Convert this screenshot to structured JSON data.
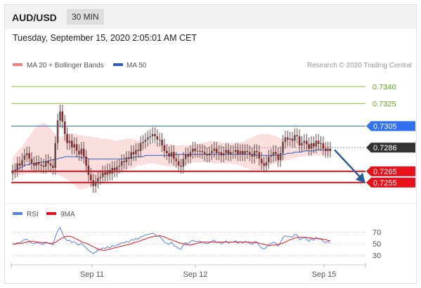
{
  "header": {
    "symbol": "AUD/USD",
    "timeframe": "30 MIN"
  },
  "timestamp": "Tuesday, September 15, 2020 2:05:01 AM CET",
  "legend": {
    "bollinger": "MA 20 + Bollinger Bands",
    "ma50": "MA 50",
    "credit": "Research © 2020 Trading Central"
  },
  "rsi_legend": {
    "rsi": "RSI",
    "ma9": "9MA"
  },
  "colors": {
    "green": "#8dc63f",
    "blue": "#2f6cd6",
    "red": "#e8101a",
    "dark": "#333333",
    "band": "#f7c3c3",
    "ma50": "#2f5cc0"
  },
  "chart_data": [
    {
      "type": "candlestick",
      "title": "AUD/USD 30 MIN",
      "ylim": [
        0.7245,
        0.7352
      ],
      "x_labels": [
        "Sep 11",
        "Sep 12",
        "Sep 15"
      ],
      "levels": [
        {
          "value": 0.734,
          "label": "0.7340",
          "style": "green"
        },
        {
          "value": 0.7325,
          "label": "0.7325",
          "style": "green"
        },
        {
          "value": 0.7305,
          "label": "0.7305",
          "style": "blue"
        },
        {
          "value": 0.7286,
          "label": "0.7286",
          "style": "dark"
        },
        {
          "value": 0.7265,
          "label": "0.7265",
          "style": "red"
        },
        {
          "value": 0.7255,
          "label": "0.7255",
          "style": "red"
        }
      ],
      "projection": {
        "from": 0.7284,
        "to": 0.7255
      },
      "closes": [
        0.7265,
        0.7266,
        0.7272,
        0.727,
        0.7275,
        0.7279,
        0.7281,
        0.7276,
        0.7272,
        0.727,
        0.7273,
        0.7271,
        0.727,
        0.7269,
        0.7274,
        0.7272,
        0.727,
        0.7268,
        0.729,
        0.731,
        0.7318,
        0.7309,
        0.7298,
        0.729,
        0.7292,
        0.7286,
        0.7289,
        0.7283,
        0.728,
        0.7285,
        0.7278,
        0.727,
        0.7262,
        0.7257,
        0.7252,
        0.7256,
        0.7259,
        0.726,
        0.7264,
        0.7262,
        0.7266,
        0.7263,
        0.7268,
        0.7266,
        0.7269,
        0.727,
        0.7274,
        0.7273,
        0.7277,
        0.7276,
        0.7282,
        0.728,
        0.7284,
        0.7283,
        0.729,
        0.7291,
        0.7293,
        0.7295,
        0.7296,
        0.7298,
        0.7296,
        0.7293,
        0.7293,
        0.7288,
        0.7283,
        0.7281,
        0.7278,
        0.7282,
        0.7276,
        0.7274,
        0.727,
        0.7269,
        0.7276,
        0.728,
        0.7278,
        0.7282,
        0.7285,
        0.7283,
        0.7283,
        0.7283,
        0.7282,
        0.728,
        0.7279,
        0.7281,
        0.7283,
        0.7285,
        0.7281,
        0.7282,
        0.7279,
        0.7281,
        0.7284,
        0.728,
        0.7282,
        0.7282,
        0.7284,
        0.728,
        0.7283,
        0.728,
        0.7283,
        0.7282,
        0.728,
        0.7278,
        0.7283,
        0.7282,
        0.7276,
        0.7272,
        0.727,
        0.7273,
        0.7278,
        0.7279,
        0.7282,
        0.728,
        0.7275,
        0.7281,
        0.7291,
        0.7295,
        0.7293,
        0.7294,
        0.7292,
        0.7297,
        0.7296,
        0.7288,
        0.729,
        0.7292,
        0.7289,
        0.7285,
        0.729,
        0.7287,
        0.7292,
        0.7289,
        0.729,
        0.7285,
        0.7283,
        0.7285,
        0.7283
      ],
      "bb_upper": [
        0.7278,
        0.728,
        0.7283,
        0.7285,
        0.7287,
        0.729,
        0.7293,
        0.7296,
        0.7299,
        0.7302,
        0.7304,
        0.7306,
        0.7307,
        0.7308,
        0.7307,
        0.7305,
        0.7303,
        0.73,
        0.7298,
        0.7296,
        0.7295,
        0.7296,
        0.7297,
        0.7298,
        0.7298,
        0.7298,
        0.7298,
        0.7298,
        0.7297,
        0.7297,
        0.7296,
        0.7296,
        0.7296,
        0.7296,
        0.7295,
        0.7295,
        0.7295,
        0.7294,
        0.7294,
        0.7294,
        0.7294,
        0.7293,
        0.7293,
        0.7292,
        0.7292,
        0.7292,
        0.7293,
        0.7293,
        0.7294,
        0.7294,
        0.7294,
        0.7293,
        0.7293,
        0.7292,
        0.7292,
        0.7291,
        0.729,
        0.729,
        0.729,
        0.729,
        0.729,
        0.729,
        0.729,
        0.7289,
        0.7289,
        0.7289,
        0.7289,
        0.7289,
        0.7288,
        0.7288,
        0.7288,
        0.7288,
        0.7288,
        0.7288,
        0.7288,
        0.7288,
        0.7288,
        0.7289,
        0.7289,
        0.729,
        0.729,
        0.7291,
        0.7291,
        0.7292,
        0.7292,
        0.7292,
        0.7291,
        0.7291,
        0.7291,
        0.729,
        0.729,
        0.729,
        0.729,
        0.729,
        0.729,
        0.729,
        0.7291,
        0.7291,
        0.7292,
        0.7293,
        0.7294,
        0.7295,
        0.7296,
        0.7297,
        0.7297,
        0.7298,
        0.7298,
        0.7298,
        0.7298,
        0.7297,
        0.7297,
        0.7296,
        0.7295,
        0.7294,
        0.7294,
        0.7293,
        0.7293,
        0.7292,
        0.7292,
        0.7292,
        0.7291,
        0.7291,
        0.729,
        0.729,
        0.729,
        0.7289,
        0.7289,
        0.7289,
        0.7288,
        0.7288,
        0.7288,
        0.7288,
        0.7287,
        0.7287,
        0.7287
      ],
      "bb_lower": [
        0.7262,
        0.7262,
        0.7262,
        0.7262,
        0.7262,
        0.7262,
        0.7263,
        0.7263,
        0.7263,
        0.7263,
        0.7263,
        0.7263,
        0.7263,
        0.7264,
        0.7264,
        0.7264,
        0.7264,
        0.7263,
        0.7262,
        0.7262,
        0.7261,
        0.726,
        0.7259,
        0.7258,
        0.7256,
        0.7255,
        0.7253,
        0.7251,
        0.7249,
        0.7249,
        0.725,
        0.725,
        0.7251,
        0.7252,
        0.7253,
        0.7254,
        0.7256,
        0.7257,
        0.7258,
        0.7259,
        0.726,
        0.7261,
        0.7262,
        0.7263,
        0.7264,
        0.7264,
        0.7265,
        0.7266,
        0.7266,
        0.7267,
        0.7268,
        0.7268,
        0.7269,
        0.727,
        0.727,
        0.7271,
        0.7271,
        0.7272,
        0.7272,
        0.7272,
        0.7272,
        0.7271,
        0.7271,
        0.727,
        0.727,
        0.7269,
        0.7269,
        0.7269,
        0.7269,
        0.7269,
        0.727,
        0.727,
        0.7271,
        0.7271,
        0.7272,
        0.7272,
        0.7273,
        0.7273,
        0.7273,
        0.7273,
        0.7273,
        0.7273,
        0.7273,
        0.7273,
        0.7272,
        0.7272,
        0.7272,
        0.7272,
        0.7272,
        0.7272,
        0.7272,
        0.7272,
        0.7272,
        0.7271,
        0.7271,
        0.727,
        0.727,
        0.7269,
        0.7268,
        0.7268,
        0.7267,
        0.7266,
        0.7266,
        0.7266,
        0.7266,
        0.7267,
        0.7268,
        0.7269,
        0.727,
        0.7271,
        0.7271,
        0.7272,
        0.7273,
        0.7273,
        0.7274,
        0.7275,
        0.7275,
        0.7276,
        0.7276,
        0.7277,
        0.7277,
        0.7278,
        0.7278,
        0.7278,
        0.7279,
        0.7279,
        0.7279,
        0.7279,
        0.7279,
        0.7279,
        0.7279,
        0.7279,
        0.7279,
        0.7279,
        0.7279
      ],
      "ma50": [
        0.7265,
        0.7266,
        0.7267,
        0.7268,
        0.7269,
        0.727,
        0.7271,
        0.7271,
        0.7272,
        0.7272,
        0.7272,
        0.7273,
        0.7273,
        0.7273,
        0.7274,
        0.7274,
        0.7275,
        0.7275,
        0.7276,
        0.7276,
        0.7277,
        0.7277,
        0.7278,
        0.7278,
        0.7278,
        0.7278,
        0.7278,
        0.7278,
        0.7278,
        0.7277,
        0.7277,
        0.7277,
        0.7276,
        0.7276,
        0.7276,
        0.7276,
        0.7276,
        0.7276,
        0.7276,
        0.7276,
        0.7276,
        0.7276,
        0.7276,
        0.7276,
        0.7276,
        0.7276,
        0.7276,
        0.7276,
        0.7277,
        0.7277,
        0.7277,
        0.7277,
        0.7278,
        0.7278,
        0.7278,
        0.7278,
        0.7279,
        0.7279,
        0.7279,
        0.7279,
        0.7279,
        0.7279,
        0.7279,
        0.7279,
        0.7279,
        0.7279,
        0.7279,
        0.7279,
        0.728,
        0.728,
        0.728,
        0.728,
        0.728,
        0.728,
        0.728,
        0.728,
        0.728,
        0.728,
        0.728,
        0.728,
        0.728,
        0.728,
        0.728,
        0.728,
        0.728,
        0.728,
        0.728,
        0.728,
        0.728,
        0.728,
        0.728,
        0.728,
        0.728,
        0.728,
        0.728,
        0.728,
        0.728,
        0.728,
        0.728,
        0.728,
        0.728,
        0.728,
        0.728,
        0.7279,
        0.7279,
        0.7279,
        0.7279,
        0.7279,
        0.7279,
        0.7279,
        0.7279,
        0.7279,
        0.7279,
        0.728,
        0.728,
        0.728,
        0.7281,
        0.7281,
        0.7281,
        0.7282,
        0.7282,
        0.7282,
        0.7282,
        0.7283,
        0.7283,
        0.7283,
        0.7283,
        0.7283,
        0.7284,
        0.7284,
        0.7284,
        0.7284,
        0.7284,
        0.7284,
        0.7284
      ]
    },
    {
      "type": "line",
      "title": "RSI",
      "ylim": [
        20,
        85
      ],
      "y_ticks": [
        70,
        50,
        30
      ],
      "series": [
        {
          "name": "RSI",
          "values": [
            50,
            49,
            52,
            51,
            55,
            57,
            58,
            54,
            51,
            50,
            52,
            51,
            50,
            49,
            53,
            51,
            50,
            48,
            62,
            72,
            78,
            68,
            60,
            55,
            56,
            52,
            54,
            50,
            48,
            51,
            47,
            43,
            39,
            36,
            33,
            36,
            39,
            40,
            43,
            42,
            45,
            43,
            47,
            46,
            48,
            49,
            52,
            51,
            54,
            53,
            57,
            56,
            59,
            58,
            62,
            63,
            65,
            66,
            67,
            68,
            66,
            63,
            63,
            58,
            53,
            51,
            49,
            53,
            47,
            45,
            42,
            41,
            48,
            52,
            50,
            54,
            56,
            54,
            54,
            54,
            53,
            51,
            50,
            52,
            54,
            56,
            52,
            53,
            50,
            52,
            55,
            51,
            53,
            53,
            55,
            51,
            54,
            51,
            54,
            53,
            51,
            49,
            54,
            53,
            47,
            43,
            41,
            44,
            49,
            50,
            53,
            51,
            46,
            52,
            61,
            64,
            62,
            63,
            61,
            66,
            65,
            57,
            59,
            61,
            58,
            54,
            59,
            56,
            61,
            58,
            59,
            54,
            52,
            54,
            52
          ]
        },
        {
          "name": "9MA",
          "values": [
            50,
            50,
            50,
            51,
            51,
            52,
            53,
            54,
            54,
            54,
            53,
            53,
            52,
            52,
            52,
            51,
            51,
            51,
            52,
            55,
            58,
            60,
            62,
            63,
            63,
            62,
            60,
            58,
            56,
            54,
            52,
            51,
            49,
            47,
            45,
            43,
            41,
            40,
            39,
            39,
            40,
            41,
            42,
            43,
            44,
            45,
            46,
            47,
            48,
            49,
            50,
            52,
            53,
            54,
            55,
            57,
            58,
            60,
            61,
            62,
            63,
            63,
            64,
            63,
            62,
            60,
            58,
            57,
            55,
            54,
            52,
            51,
            50,
            49,
            48,
            48,
            49,
            50,
            51,
            52,
            53,
            53,
            53,
            53,
            53,
            53,
            53,
            53,
            53,
            53,
            53,
            53,
            53,
            53,
            53,
            53,
            53,
            53,
            53,
            53,
            53,
            52,
            52,
            52,
            51,
            50,
            49,
            48,
            47,
            47,
            48,
            48,
            49,
            50,
            51,
            53,
            55,
            57,
            58,
            60,
            61,
            61,
            61,
            61,
            61,
            60,
            60,
            59,
            59,
            59,
            58,
            58,
            57,
            56,
            55
          ]
        }
      ]
    }
  ]
}
